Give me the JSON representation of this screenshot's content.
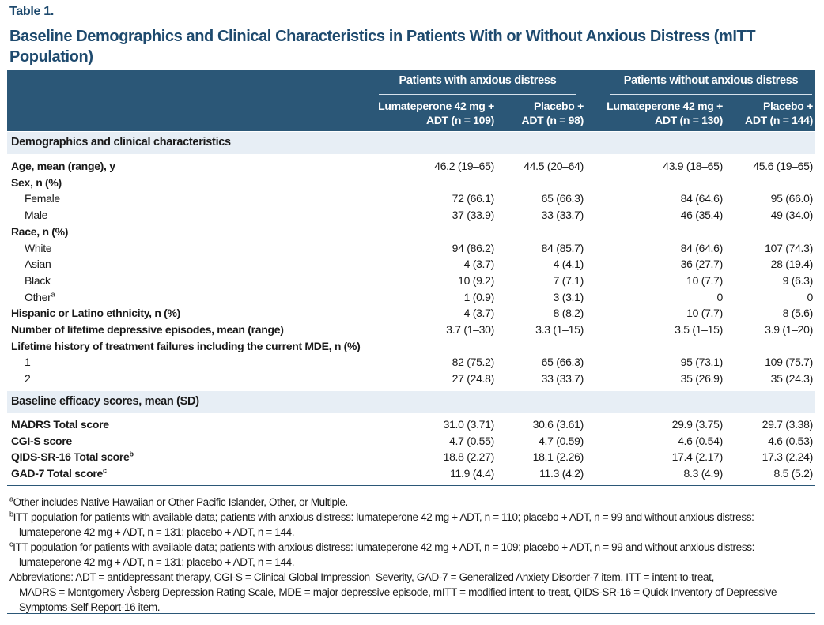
{
  "table_label": "Table 1.",
  "title": "Baseline Demographics and Clinical Characteristics in Patients With or Without Anxious Distress (mITT Population)",
  "header": {
    "group_with": "Patients with anxious distress",
    "group_without": "Patients without anxious distress",
    "columns": [
      [
        "Lumateperone 42 mg +",
        "ADT (n = 109)"
      ],
      [
        "Placebo +",
        "ADT (n = 98)"
      ],
      [
        "Lumateperone 42 mg +",
        "ADT (n = 130)"
      ],
      [
        "Placebo +",
        "ADT (n = 144)"
      ]
    ]
  },
  "sections": {
    "demographics": "Demographics and clinical characteristics",
    "efficacy": "Baseline efficacy scores, mean (SD)"
  },
  "rows": [
    {
      "label": "Age, mean (range), y",
      "sup": "",
      "bold": true,
      "indent": false,
      "values": [
        "46.2 (19–65)",
        "44.5 (20–64)",
        "43.9 (18–65)",
        "45.6 (19–65)"
      ]
    },
    {
      "label": "Sex, n (%)",
      "sup": "",
      "bold": true,
      "indent": false,
      "values": [
        "",
        "",
        "",
        ""
      ]
    },
    {
      "label": "Female",
      "sup": "",
      "bold": false,
      "indent": true,
      "values": [
        "72 (66.1)",
        "65 (66.3)",
        "84 (64.6)",
        "95 (66.0)"
      ]
    },
    {
      "label": "Male",
      "sup": "",
      "bold": false,
      "indent": true,
      "values": [
        "37 (33.9)",
        "33 (33.7)",
        "46 (35.4)",
        "49 (34.0)"
      ]
    },
    {
      "label": "Race, n (%)",
      "sup": "",
      "bold": true,
      "indent": false,
      "values": [
        "",
        "",
        "",
        ""
      ]
    },
    {
      "label": "White",
      "sup": "",
      "bold": false,
      "indent": true,
      "values": [
        "94 (86.2)",
        "84 (85.7)",
        "84 (64.6)",
        "107 (74.3)"
      ]
    },
    {
      "label": "Asian",
      "sup": "",
      "bold": false,
      "indent": true,
      "values": [
        "4 (3.7)",
        "4 (4.1)",
        "36 (27.7)",
        "28 (19.4)"
      ]
    },
    {
      "label": "Black",
      "sup": "",
      "bold": false,
      "indent": true,
      "values": [
        "10 (9.2)",
        "7 (7.1)",
        "10 (7.7)",
        "9 (6.3)"
      ]
    },
    {
      "label": "Other",
      "sup": "a",
      "bold": false,
      "indent": true,
      "values": [
        "1 (0.9)",
        "3 (3.1)",
        "0",
        "0"
      ]
    },
    {
      "label": "Hispanic or Latino ethnicity, n (%)",
      "sup": "",
      "bold": true,
      "indent": false,
      "values": [
        "4 (3.7)",
        "8 (8.2)",
        "10 (7.7)",
        "8 (5.6)"
      ]
    },
    {
      "label": "Number of lifetime depressive episodes, mean (range)",
      "sup": "",
      "bold": true,
      "indent": false,
      "values": [
        "3.7 (1–30)",
        "3.3 (1–15)",
        "3.5 (1–15)",
        "3.9 (1–20)"
      ]
    },
    {
      "label": "Lifetime history of treatment failures including the current MDE, n (%)",
      "sup": "",
      "bold": true,
      "indent": false,
      "values": [
        "",
        "",
        "",
        ""
      ]
    },
    {
      "label": "1",
      "sup": "",
      "bold": false,
      "indent": true,
      "values": [
        "82 (75.2)",
        "65 (66.3)",
        "95 (73.1)",
        "109 (75.7)"
      ]
    },
    {
      "label": "2",
      "sup": "",
      "bold": false,
      "indent": true,
      "values": [
        "27 (24.8)",
        "33 (33.7)",
        "35 (26.9)",
        "35 (24.3)"
      ]
    },
    {
      "label": "MADRS Total score",
      "sup": "",
      "bold": true,
      "indent": false,
      "values": [
        "31.0 (3.71)",
        "30.6 (3.61)",
        "29.9 (3.75)",
        "29.7 (3.38)"
      ]
    },
    {
      "label": "CGI-S score",
      "sup": "",
      "bold": true,
      "indent": false,
      "values": [
        "4.7 (0.55)",
        "4.7 (0.59)",
        "4.6 (0.54)",
        "4.6 (0.53)"
      ]
    },
    {
      "label": "QIDS-SR-16 Total score",
      "sup": "b",
      "bold": true,
      "indent": false,
      "values": [
        "18.8 (2.27)",
        "18.1 (2.26)",
        "17.4 (2.17)",
        "17.3 (2.24)"
      ]
    },
    {
      "label": "GAD-7 Total score",
      "sup": "c",
      "bold": true,
      "indent": false,
      "values": [
        "11.9 (4.4)",
        "11.3 (4.2)",
        "8.3 (4.9)",
        "8.5 (5.2)"
      ]
    }
  ],
  "footnotes": [
    {
      "sup": "a",
      "lines": [
        "Other includes Native Hawaiian or Other Pacific Islander, Other, or Multiple."
      ]
    },
    {
      "sup": "b",
      "lines": [
        "ITT population for patients with available data; patients with anxious distress: lumateperone 42 mg + ADT, n = 110; placebo + ADT, n = 99 and without anxious distress:",
        "lumateperone 42 mg + ADT, n = 131; placebo + ADT, n = 144."
      ]
    },
    {
      "sup": "c",
      "lines": [
        "ITT population for patients with available data; patients with anxious distress: lumateperone 42 mg + ADT, n = 109; placebo + ADT, n = 99 and without anxious distress:",
        "lumateperone 42 mg + ADT, n = 131; placebo + ADT, n = 144."
      ]
    },
    {
      "sup": "",
      "lines": [
        "Abbreviations: ADT = antidepressant therapy, CGI-S = Clinical Global Impression–Severity, GAD-7 = Generalized Anxiety Disorder-7 item, ITT = intent-to-treat,",
        "MADRS = Montgomery-Åsberg Depression Rating Scale, MDE = major depressive episode, mITT = modified intent-to-treat, QIDS-SR-16 = Quick Inventory of Depressive",
        "Symptoms-Self Report-16 item."
      ]
    }
  ],
  "colors": {
    "header_bg": "#2b5777",
    "section_bg": "#e7eef5",
    "title": "#1e4a6e"
  }
}
